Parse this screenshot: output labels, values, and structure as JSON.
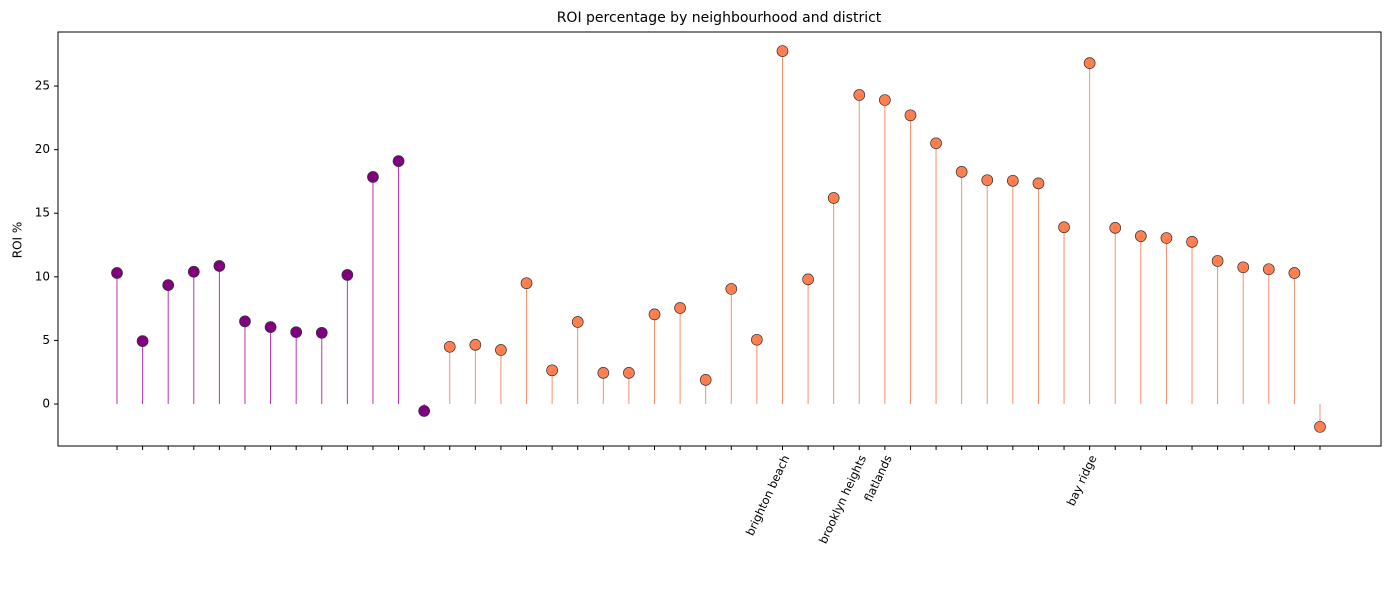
{
  "chart_data": {
    "type": "lollipop",
    "title": "ROI percentage by neighbourhood and district",
    "ylabel": "ROI %",
    "categories": [
      null,
      null,
      null,
      null,
      null,
      null,
      null,
      null,
      null,
      null,
      null,
      null,
      null,
      null,
      null,
      null,
      null,
      null,
      null,
      null,
      null,
      null,
      null,
      null,
      null,
      null,
      "brighton beach",
      null,
      null,
      "brooklyn heights",
      "flatlands",
      null,
      null,
      null,
      null,
      null,
      null,
      null,
      "bay ridge",
      null,
      null,
      null,
      null,
      null,
      null,
      null,
      null,
      null
    ],
    "series": [
      {
        "color": "#800080",
        "stem_color": "#b833b8",
        "values": [
          10.3,
          4.95,
          9.35,
          10.4,
          10.85,
          6.5,
          6.05,
          5.65,
          5.6,
          10.15,
          17.85,
          19.1,
          -0.55,
          null,
          null,
          null,
          null,
          null,
          null,
          null,
          null,
          null,
          null,
          null,
          null,
          null,
          null,
          null,
          null,
          null,
          null,
          null,
          null,
          null,
          null,
          null,
          null,
          null,
          null,
          null,
          null,
          null,
          null,
          null,
          null,
          null,
          null,
          null
        ]
      },
      {
        "color": "#ff7f50",
        "stem_color": "#f4906c",
        "values": [
          null,
          null,
          null,
          null,
          null,
          null,
          null,
          null,
          null,
          null,
          null,
          null,
          null,
          4.5,
          4.65,
          4.25,
          9.5,
          2.65,
          6.45,
          2.45,
          2.45,
          7.05,
          7.55,
          1.9,
          9.05,
          5.05,
          27.75,
          9.8,
          16.2,
          24.3,
          23.9,
          22.7,
          20.5,
          18.25,
          17.6,
          17.55,
          17.35,
          13.9,
          26.8,
          13.85,
          13.2,
          13.05,
          12.75,
          11.25,
          10.75,
          10.6,
          10.3,
          -1.8
        ]
      }
    ],
    "ylim": [
      -3.3,
      29.25
    ],
    "yticks": [
      0,
      5,
      10,
      15,
      20,
      25
    ],
    "grid": false
  }
}
